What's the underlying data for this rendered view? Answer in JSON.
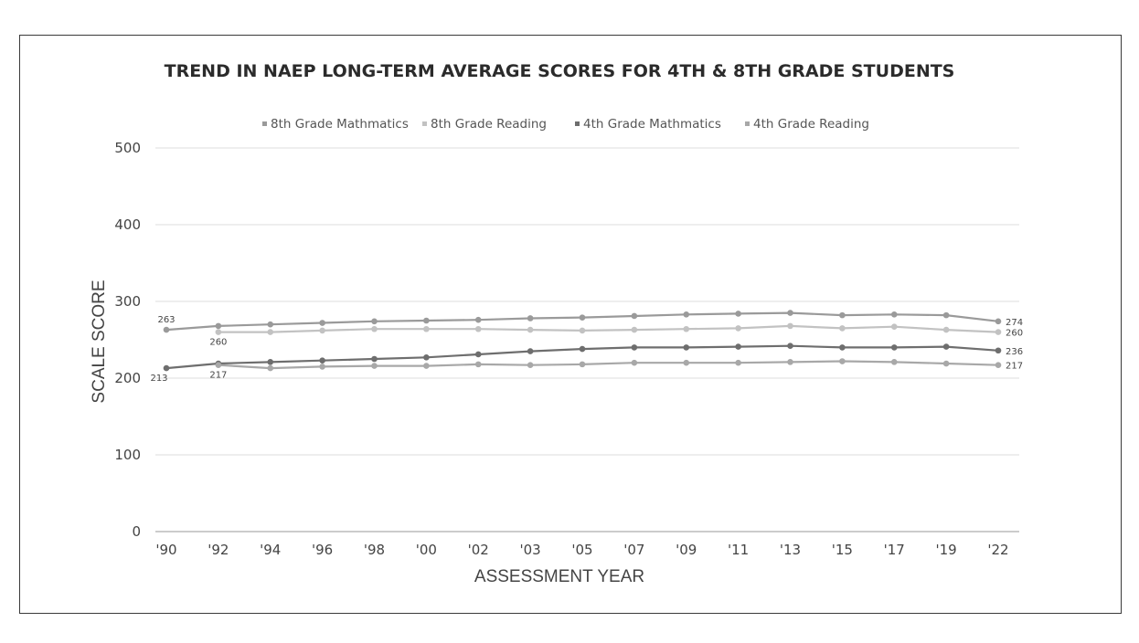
{
  "chart_data": {
    "type": "line",
    "title": "TREND IN NAEP LONG-TERM AVERAGE SCORES FOR 4TH & 8TH GRADE STUDENTS",
    "xlabel": "ASSESSMENT YEAR",
    "ylabel": "SCALE SCORE",
    "categories": [
      "'90",
      "'92",
      "'94",
      "'96",
      "'98",
      "'00",
      "'02",
      "'03",
      "'05",
      "'07",
      "'09",
      "'11",
      "'13",
      "'15",
      "'17",
      "'19",
      "'22"
    ],
    "ylim": [
      0,
      500
    ],
    "yticks": [
      0,
      100,
      200,
      300,
      400,
      500
    ],
    "grid": true,
    "legend_position": "top",
    "series": [
      {
        "name": "8th Grade Mathmatics",
        "color": "#9a9a9a",
        "values": [
          263,
          268,
          270,
          272,
          274,
          275,
          276,
          278,
          279,
          281,
          283,
          284,
          285,
          282,
          283,
          282,
          274
        ],
        "labels": [
          {
            "index": 0,
            "text": "263",
            "anchor": "above"
          },
          {
            "index": 16,
            "text": "274",
            "anchor": "right"
          }
        ]
      },
      {
        "name": "8th Grade Reading",
        "color": "#c2c2c2",
        "values": [
          null,
          260,
          260,
          262,
          264,
          264,
          264,
          263,
          262,
          263,
          264,
          265,
          268,
          265,
          267,
          263,
          260
        ],
        "labels": [
          {
            "index": 1,
            "text": "260",
            "anchor": "below"
          },
          {
            "index": 16,
            "text": "260",
            "anchor": "right"
          }
        ]
      },
      {
        "name": "4th Grade Mathmatics",
        "color": "#6e6e6e",
        "values": [
          213,
          219,
          221,
          223,
          225,
          227,
          231,
          235,
          238,
          240,
          240,
          241,
          242,
          240,
          240,
          241,
          236
        ],
        "labels": [
          {
            "index": 0,
            "text": "213",
            "anchor": "below-left"
          },
          {
            "index": 16,
            "text": "236",
            "anchor": "right"
          }
        ]
      },
      {
        "name": "4th Grade Reading",
        "color": "#a8a8a8",
        "values": [
          null,
          217,
          213,
          215,
          216,
          216,
          218,
          217,
          218,
          220,
          220,
          220,
          221,
          222,
          221,
          219,
          217
        ],
        "labels": [
          {
            "index": 1,
            "text": "217",
            "anchor": "below"
          },
          {
            "index": 16,
            "text": "217",
            "anchor": "right"
          }
        ]
      }
    ]
  }
}
